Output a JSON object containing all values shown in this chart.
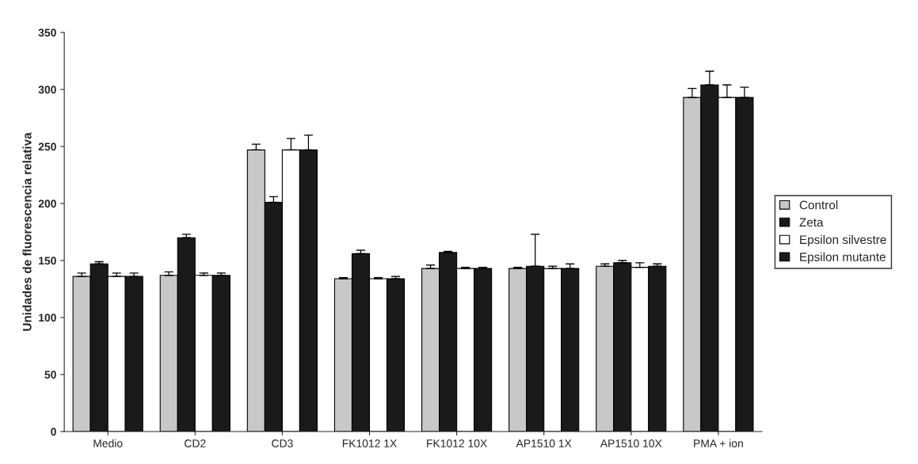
{
  "chart_data": {
    "type": "bar",
    "ylabel": "Unidades de fluorescencia relativa",
    "categories": [
      "Medio",
      "CD2",
      "CD3",
      "FK1012 1X",
      "FK1012 10X",
      "AP1510 1X",
      "AP1510 10X",
      "PMA + ion"
    ],
    "series": [
      {
        "name": "Control",
        "color": "#c8c8c8",
        "values": [
          136,
          137,
          247,
          134,
          143,
          143,
          145,
          293
        ],
        "errors": [
          [
            136,
            139
          ],
          [
            137,
            140
          ],
          [
            247,
            252
          ],
          [
            134,
            135
          ],
          [
            143,
            146
          ],
          [
            143,
            144
          ],
          [
            145,
            147
          ],
          [
            293,
            301
          ]
        ]
      },
      {
        "name": "Zeta",
        "color": "#1a1a1a",
        "values": [
          147,
          170,
          201,
          156,
          157,
          145,
          148,
          304
        ],
        "errors": [
          [
            147,
            149
          ],
          [
            170,
            173
          ],
          [
            201,
            206
          ],
          [
            156,
            159
          ],
          [
            157,
            158
          ],
          [
            145,
            173
          ],
          [
            148,
            150
          ],
          [
            304,
            316
          ]
        ]
      },
      {
        "name": "Epsilon silvestre",
        "color": "#ffffff",
        "values": [
          136,
          137,
          247,
          134,
          143,
          143,
          144,
          293
        ],
        "errors": [
          [
            136,
            139
          ],
          [
            137,
            139
          ],
          [
            247,
            257
          ],
          [
            134,
            135
          ],
          [
            143,
            144
          ],
          [
            143,
            145
          ],
          [
            144,
            148
          ],
          [
            293,
            304
          ]
        ]
      },
      {
        "name": "Epsilon mutante",
        "color": "#1a1a1a",
        "values": [
          136,
          137,
          247,
          134,
          143,
          143,
          145,
          293
        ],
        "errors": [
          [
            136,
            139
          ],
          [
            137,
            139
          ],
          [
            247,
            260
          ],
          [
            134,
            136
          ],
          [
            143,
            144
          ],
          [
            143,
            147
          ],
          [
            145,
            147
          ],
          [
            293,
            302
          ]
        ]
      }
    ],
    "ylim": [
      0,
      350
    ],
    "yticks": [
      0,
      50,
      100,
      150,
      200,
      250,
      300,
      350
    ],
    "grid": false,
    "legend": "right"
  }
}
